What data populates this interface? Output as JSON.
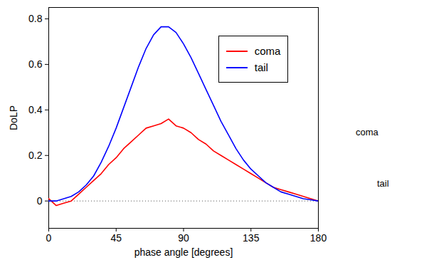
{
  "chart_data": {
    "type": "line",
    "x_label": "phase angle [degrees]",
    "y_label": "DoLP",
    "x": [
      0,
      5,
      10,
      15,
      20,
      25,
      30,
      35,
      40,
      45,
      50,
      55,
      60,
      65,
      70,
      75,
      80,
      85,
      90,
      95,
      100,
      105,
      110,
      115,
      120,
      125,
      130,
      135,
      140,
      145,
      150,
      155,
      160,
      165,
      170,
      175,
      180
    ],
    "series": [
      {
        "name": "coma",
        "color": "#ff0000",
        "values": [
          0.01,
          -0.02,
          -0.01,
          0.0,
          0.03,
          0.06,
          0.09,
          0.12,
          0.16,
          0.19,
          0.23,
          0.26,
          0.29,
          0.32,
          0.33,
          0.34,
          0.36,
          0.33,
          0.32,
          0.3,
          0.27,
          0.25,
          0.22,
          0.2,
          0.18,
          0.16,
          0.14,
          0.12,
          0.1,
          0.08,
          0.06,
          0.05,
          0.04,
          0.03,
          0.02,
          0.01,
          0.0
        ]
      },
      {
        "name": "tail",
        "color": "#0000ff",
        "values": [
          0.0,
          0.0,
          0.01,
          0.02,
          0.04,
          0.07,
          0.11,
          0.17,
          0.24,
          0.32,
          0.41,
          0.5,
          0.59,
          0.67,
          0.73,
          0.765,
          0.765,
          0.74,
          0.69,
          0.63,
          0.56,
          0.49,
          0.42,
          0.35,
          0.29,
          0.23,
          0.18,
          0.14,
          0.11,
          0.08,
          0.06,
          0.04,
          0.03,
          0.02,
          0.01,
          0.005,
          0.0
        ]
      }
    ],
    "xlim": [
      0,
      180
    ],
    "xticks": [
      0,
      45,
      90,
      135,
      180
    ],
    "ylim": [
      -0.12,
      0.85
    ],
    "yticks": [
      0,
      0.2,
      0.4,
      0.6,
      0.8
    ],
    "baseline": 0,
    "legend": "top right",
    "annotations": [
      "coma",
      "tail"
    ]
  }
}
